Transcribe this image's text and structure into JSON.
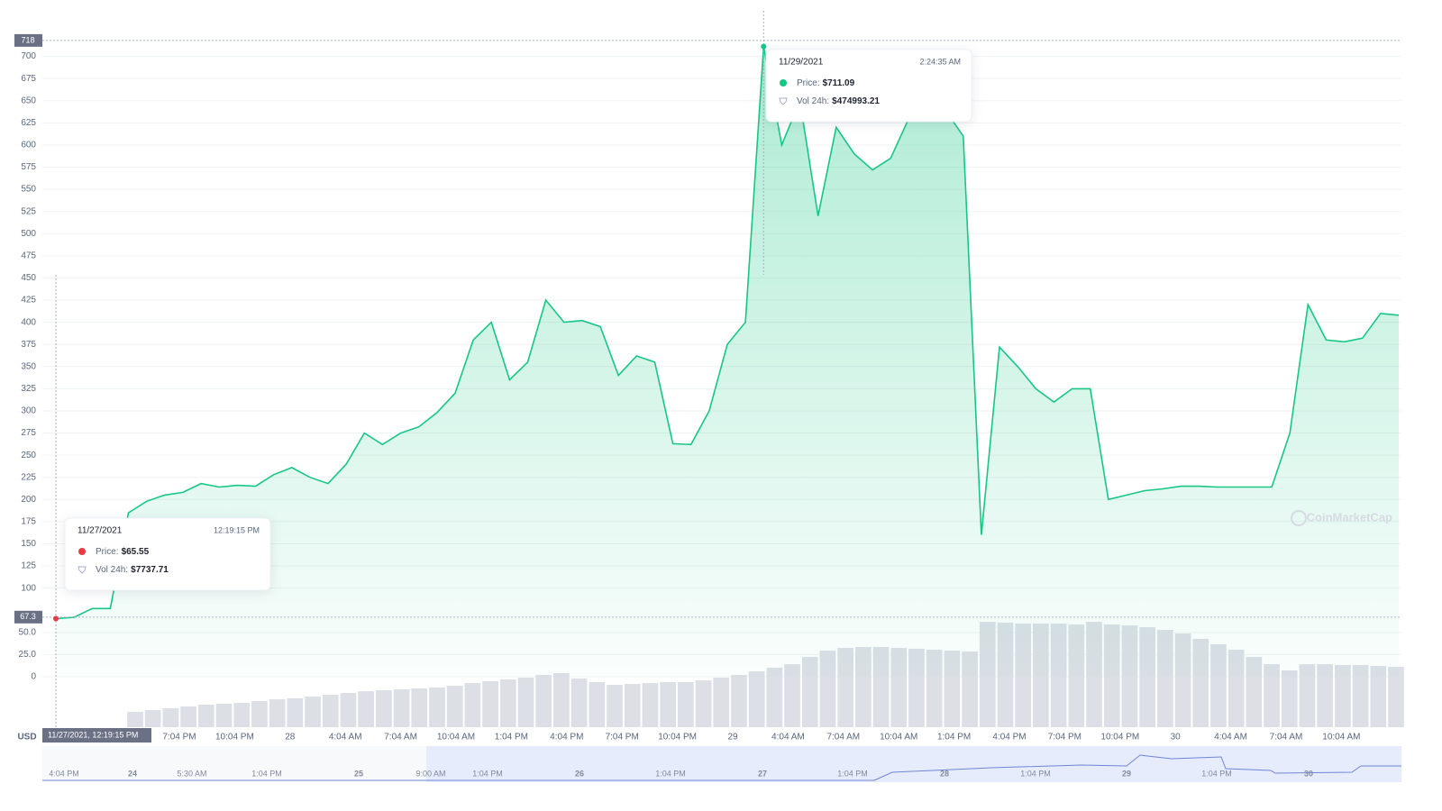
{
  "chart_data": {
    "type": "area",
    "currency": "USD",
    "ylim": [
      0,
      725
    ],
    "yticks": [
      0,
      {
        "value": 25,
        "label": "25.0"
      },
      {
        "value": 50,
        "label": "50.0"
      },
      100,
      125,
      150,
      175,
      200,
      225,
      250,
      275,
      300,
      325,
      350,
      375,
      400,
      425,
      450,
      475,
      500,
      525,
      550,
      575,
      600,
      625,
      650,
      675,
      700
    ],
    "grid": true,
    "xticks": [
      "7:04 PM",
      "10:04 PM",
      "28",
      "4:04 AM",
      "7:04 AM",
      "10:04 AM",
      "1:04 PM",
      "4:04 PM",
      "7:04 PM",
      "10:04 PM",
      "29",
      "4:04 AM",
      "7:04 AM",
      "10:04 AM",
      "1:04 PM",
      "4:04 PM",
      "7:04 PM",
      "10:04 PM",
      "30",
      "4:04 AM",
      "7:04 AM",
      "10:04 AM"
    ],
    "series": [
      {
        "name": "Price",
        "color": "#16c784",
        "values": [
          65.55,
          67,
          77,
          77,
          185,
          198,
          205,
          208,
          218,
          214,
          216,
          215,
          228,
          236,
          225,
          218,
          240,
          275,
          262,
          275,
          282,
          298,
          320,
          380,
          400,
          335,
          355,
          425,
          400,
          402,
          395,
          340,
          362,
          355,
          263,
          262,
          300,
          375,
          400,
          711.09,
          600,
          650,
          520,
          620,
          590,
          572,
          585,
          630,
          645,
          640,
          610,
          160,
          372,
          350,
          325,
          310,
          325,
          325,
          200,
          205,
          210,
          212,
          215,
          215,
          214,
          214,
          214,
          214,
          275,
          420,
          380,
          378,
          382,
          410,
          408
        ]
      }
    ],
    "volume": {
      "color": "#dcdfe6",
      "values": [
        130000,
        146000,
        161000,
        176000,
        192000,
        199000,
        207000,
        222000,
        237000,
        245000,
        260000,
        276000,
        291000,
        306000,
        314000,
        322000,
        329000,
        337000,
        352000,
        375000,
        391000,
        406000,
        421000,
        444000,
        460000,
        414000,
        383000,
        360000,
        368000,
        375000,
        383000,
        383000,
        398000,
        421000,
        444000,
        474993.21,
        506000,
        536000,
        598000,
        651000,
        674000,
        682000,
        682000,
        674000,
        667000,
        659000,
        651000,
        644000,
        896000,
        889000,
        881000,
        881000,
        881000,
        873000,
        896000,
        873000,
        866000,
        850000,
        827000,
        797000,
        751000,
        705000,
        659000,
        598000,
        536000,
        483000,
        536000,
        536000,
        529000,
        529000,
        521000,
        513000
      ]
    },
    "crosshair_y": [
      718,
      67.3
    ],
    "crosshair_x": "11/27/2021, 12:19:15 PM",
    "tooltips": [
      {
        "date": "11/29/2021",
        "time": "2:24:35 AM",
        "price_label": "Price:",
        "price": "$711.09",
        "volume_label": "Vol 24h:",
        "volume": "$474993.21",
        "dot_color": "#16c784"
      },
      {
        "date": "11/27/2021",
        "time": "12:19:15 PM",
        "price_label": "Price:",
        "price": "$65.55",
        "volume_label": "Vol 24h:",
        "volume": "$7737.71",
        "dot_color": "#ea3943"
      }
    ],
    "navigator_labels": [
      "4:04 PM",
      "24",
      "5:30 AM",
      "1:04 PM",
      "25",
      "9:00 AM",
      "1:04 PM",
      "26",
      "1:04 PM",
      "27",
      "1:04 PM",
      "28",
      "1:04 PM",
      "29",
      "1:04 PM",
      "30"
    ],
    "watermark": "CoinMarketCap"
  }
}
